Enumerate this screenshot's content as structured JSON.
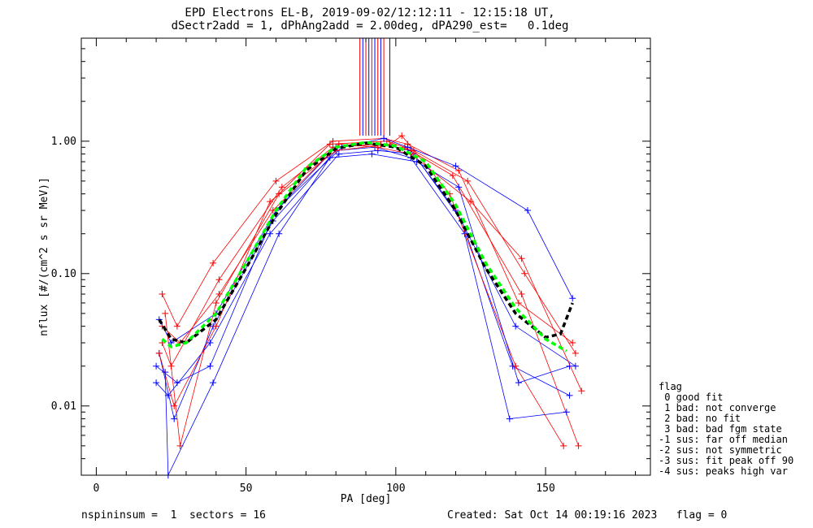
{
  "chart_data": {
    "type": "line",
    "title": "EPD Electrons EL-B, 2019-09-02/12:12:11 - 12:15:18 UT,",
    "subtitle": "dSectr2add = 1, dPhAng2add = 2.00deg, dPA290_est=   0.1deg",
    "xlabel": "PA [deg]",
    "ylabel": "nflux [#/(cm^2 s sr MeV)]",
    "xlim": [
      -5,
      185
    ],
    "ylim": [
      0.003,
      6.0
    ],
    "yscale": "log",
    "x_ticks": [
      0,
      50,
      100,
      150
    ],
    "y_ticks": [
      {
        "value": 0.01,
        "label": "0.01"
      },
      {
        "value": 0.1,
        "label": "0.10"
      },
      {
        "value": 1.0,
        "label": "1.00"
      }
    ],
    "series_colors": {
      "red": "#ff0000",
      "blue": "#0000ff",
      "fit_black": "#000000",
      "fit_green": "#00ff00"
    },
    "series": [
      {
        "color": "#0000ff",
        "x": [
          21,
          25,
          40,
          60,
          80,
          95,
          105,
          120,
          140,
          160
        ],
        "y": [
          0.045,
          0.03,
          0.05,
          0.3,
          0.9,
          0.95,
          0.85,
          0.3,
          0.04,
          0.02
        ]
      },
      {
        "color": "#ff0000",
        "x": [
          22,
          27,
          39,
          60,
          79,
          96,
          104,
          121,
          141,
          159
        ],
        "y": [
          0.07,
          0.04,
          0.12,
          0.5,
          1.0,
          1.05,
          0.95,
          0.6,
          0.06,
          0.03
        ]
      },
      {
        "color": "#0000ff",
        "x": [
          20,
          24,
          38,
          58,
          81,
          94,
          106,
          122,
          139,
          158
        ],
        "y": [
          0.015,
          0.012,
          0.03,
          0.2,
          0.8,
          0.85,
          0.8,
          0.25,
          0.02,
          0.012
        ]
      },
      {
        "color": "#ff0000",
        "x": [
          23,
          28,
          40,
          61,
          78,
          97,
          103,
          119,
          142,
          161
        ],
        "y": [
          0.05,
          0.005,
          0.06,
          0.4,
          0.95,
          1.0,
          0.9,
          0.55,
          0.07,
          0.005
        ]
      },
      {
        "color": "#0000ff",
        "x": [
          21,
          26,
          39,
          59,
          80,
          93,
          105,
          123,
          138,
          157
        ],
        "y": [
          0.025,
          0.008,
          0.04,
          0.25,
          0.85,
          0.9,
          0.75,
          0.2,
          0.008,
          0.009
        ]
      },
      {
        "color": "#ff0000",
        "x": [
          22,
          25,
          41,
          62,
          79,
          95,
          106,
          124,
          143,
          160
        ],
        "y": [
          0.03,
          0.02,
          0.09,
          0.45,
          0.9,
          0.95,
          0.85,
          0.5,
          0.1,
          0.025
        ]
      },
      {
        "color": "#0000ff",
        "x": [
          20,
          27,
          38,
          60,
          82,
          96,
          104,
          120,
          144,
          159
        ],
        "y": [
          0.02,
          0.015,
          0.02,
          0.3,
          0.9,
          1.05,
          0.9,
          0.65,
          0.3,
          0.065
        ]
      },
      {
        "color": "#ff0000",
        "x": [
          21,
          26,
          40,
          58,
          80,
          98,
          102,
          118,
          140,
          156
        ],
        "y": [
          0.025,
          0.01,
          0.04,
          0.35,
          0.85,
          0.95,
          1.1,
          0.4,
          0.02,
          0.005
        ]
      },
      {
        "color": "#0000ff",
        "x": [
          23,
          24,
          39,
          61,
          78,
          92,
          107,
          121,
          141,
          158
        ],
        "y": [
          0.018,
          0.003,
          0.015,
          0.2,
          0.75,
          0.8,
          0.7,
          0.45,
          0.015,
          0.02
        ]
      },
      {
        "color": "#ff0000",
        "x": [
          22,
          28,
          41,
          59,
          81,
          94,
          105,
          125,
          142,
          162
        ],
        "y": [
          0.04,
          0.03,
          0.07,
          0.3,
          0.95,
          0.9,
          0.8,
          0.35,
          0.13,
          0.013
        ]
      }
    ],
    "fit_curves": [
      {
        "name": "",
        "color": "#000000",
        "style": "dashed",
        "x": [
          21,
          25,
          30,
          40,
          50,
          60,
          70,
          80,
          90,
          100,
          110,
          120,
          130,
          140,
          150,
          155,
          159
        ],
        "y": [
          0.045,
          0.032,
          0.03,
          0.045,
          0.11,
          0.28,
          0.6,
          0.88,
          0.97,
          0.9,
          0.65,
          0.3,
          0.11,
          0.05,
          0.033,
          0.035,
          0.06
        ]
      },
      {
        "name": "",
        "color": "#00ff00",
        "style": "dashed",
        "x": [
          22,
          25,
          30,
          40,
          50,
          60,
          70,
          80,
          90,
          100,
          110,
          120,
          130,
          140,
          150,
          157
        ],
        "y": [
          0.032,
          0.028,
          0.03,
          0.05,
          0.12,
          0.3,
          0.63,
          0.9,
          0.98,
          0.92,
          0.7,
          0.33,
          0.12,
          0.055,
          0.032,
          0.026
        ]
      }
    ],
    "vertical_spikes": [
      88,
      89,
      90,
      91,
      92,
      93,
      94,
      95,
      96,
      98
    ]
  },
  "footer": {
    "left": "nspininsum =  1  sectors = 16",
    "right": "Created: Sat Oct 14 00:19:16 2023   flag = 0"
  },
  "legend": {
    "title": "flag",
    "items": [
      " 0 good fit",
      " 1 bad: not converge",
      " 2 bad: no fit",
      " 3 bad: bad fgm state",
      "-1 sus: far off median",
      "-2 sus: not symmetric",
      "-3 sus: fit peak off 90",
      "-4 sus: peaks high var"
    ]
  }
}
